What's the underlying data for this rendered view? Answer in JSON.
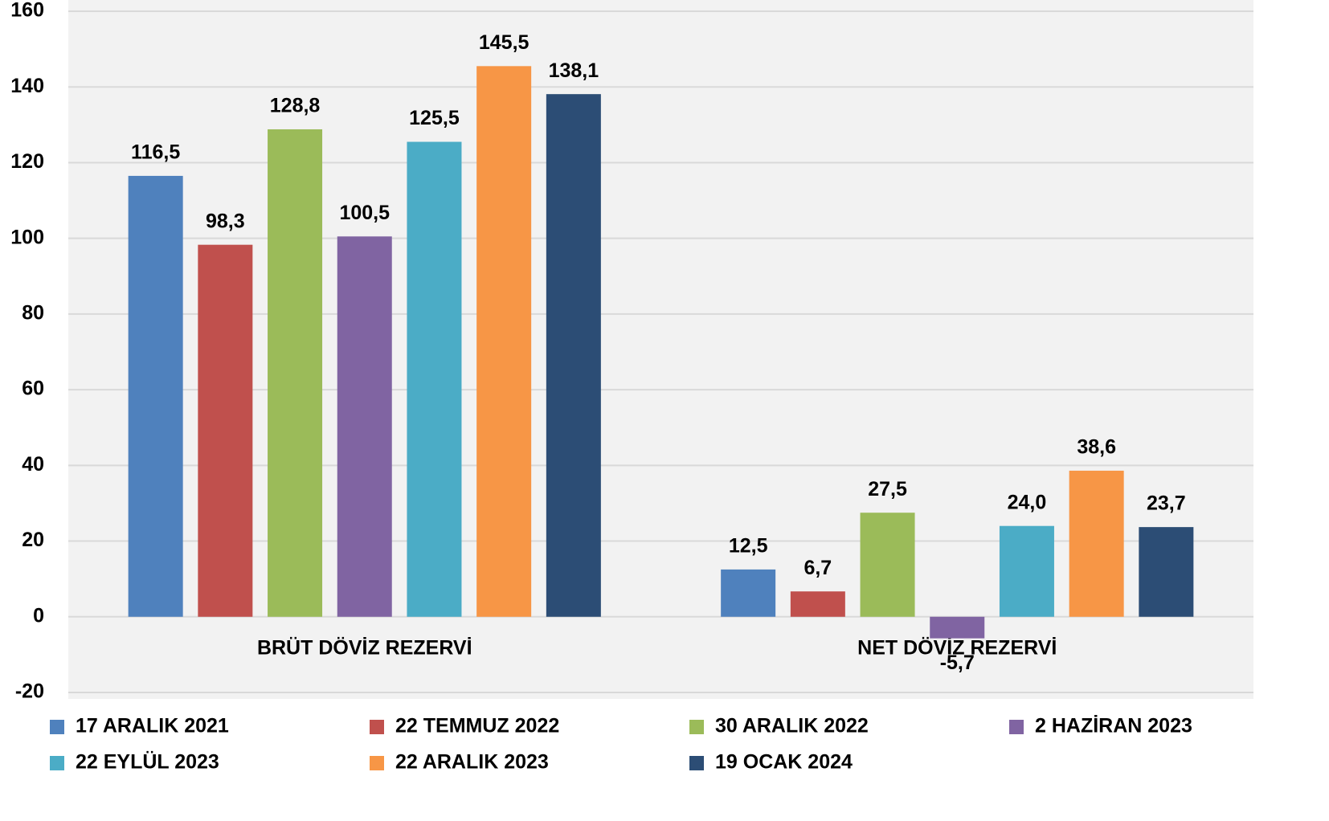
{
  "chart_data": {
    "type": "bar",
    "categories": [
      "BRÜT DÖVİZ REZERVİ",
      "NET DÖVİZ REZERVİ"
    ],
    "series": [
      {
        "name": "17 ARALIK 2021",
        "color": "#4f81bd",
        "values": [
          116.5,
          12.5
        ],
        "value_labels": [
          "116,5",
          "12,5"
        ]
      },
      {
        "name": "22 TEMMUZ 2022",
        "color": "#c0504d",
        "values": [
          98.3,
          6.7
        ],
        "value_labels": [
          "98,3",
          "6,7"
        ]
      },
      {
        "name": "30 ARALIK 2022",
        "color": "#9bbb59",
        "values": [
          128.8,
          27.5
        ],
        "value_labels": [
          "128,8",
          "27,5"
        ]
      },
      {
        "name": "2 HAZİRAN 2023",
        "color": "#8064a2",
        "values": [
          100.5,
          -5.7
        ],
        "value_labels": [
          "100,5",
          "-5,7"
        ]
      },
      {
        "name": "22 EYLÜL 2023",
        "color": "#4bacc6",
        "values": [
          125.5,
          24.0
        ],
        "value_labels": [
          "125,5",
          "24,0"
        ]
      },
      {
        "name": "22 ARALIK 2023",
        "color": "#f79646",
        "values": [
          145.5,
          38.6
        ],
        "value_labels": [
          "145,5",
          "38,6"
        ]
      },
      {
        "name": "19 OCAK 2024",
        "color": "#2c4d75",
        "values": [
          138.1,
          23.7
        ],
        "value_labels": [
          "138,1",
          "23,7"
        ]
      }
    ],
    "ylim": [
      -20,
      160
    ],
    "yticks": [
      -20,
      0,
      20,
      40,
      60,
      80,
      100,
      120,
      140,
      160
    ],
    "grid": true,
    "legend": "bottom"
  }
}
